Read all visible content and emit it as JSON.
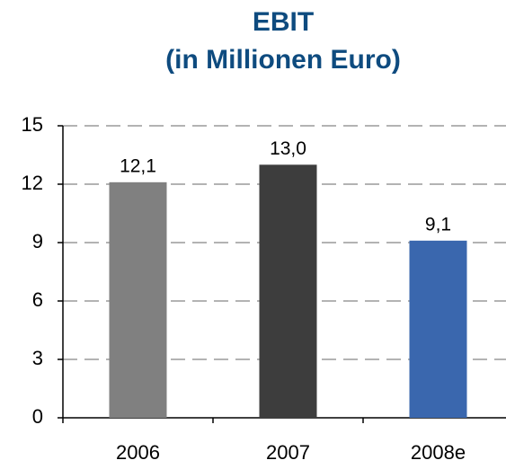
{
  "chart_data": {
    "type": "bar",
    "title": "EBIT",
    "subtitle": "(in Millionen Euro)",
    "categories": [
      "2006",
      "2007",
      "2008e"
    ],
    "values": [
      12.1,
      13.0,
      9.1
    ],
    "value_labels": [
      "12,1",
      "13,0",
      "9,1"
    ],
    "colors": [
      "#808080",
      "#3d3d3d",
      "#3a67ae"
    ],
    "ylim": [
      0,
      15
    ],
    "yticks": [
      0,
      3,
      6,
      9,
      12,
      15
    ],
    "grid": true
  }
}
